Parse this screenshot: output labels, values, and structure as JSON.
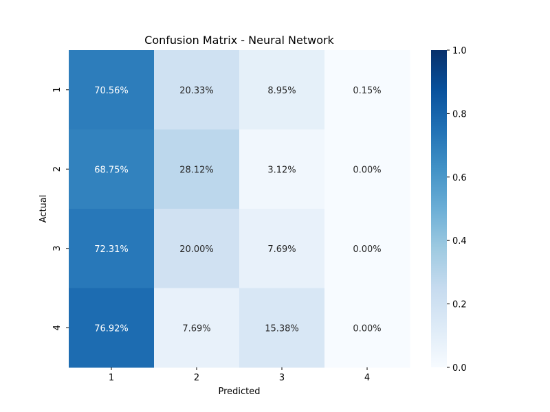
{
  "chart_data": {
    "type": "heatmap",
    "title": "Confusion Matrix - Neural Network",
    "xlabel": "Predicted",
    "ylabel": "Actual",
    "x_categories": [
      "1",
      "2",
      "3",
      "4"
    ],
    "y_categories": [
      "1",
      "2",
      "3",
      "4"
    ],
    "values": [
      [
        0.7056,
        0.2033,
        0.0895,
        0.0015
      ],
      [
        0.6875,
        0.2812,
        0.0312,
        0.0
      ],
      [
        0.7231,
        0.2,
        0.0769,
        0.0
      ],
      [
        0.7692,
        0.0769,
        0.1538,
        0.0
      ]
    ],
    "cell_labels": [
      [
        "70.56%",
        "20.33%",
        "8.95%",
        "0.15%"
      ],
      [
        "68.75%",
        "28.12%",
        "3.12%",
        "0.00%"
      ],
      [
        "72.31%",
        "20.00%",
        "7.69%",
        "0.00%"
      ],
      [
        "76.92%",
        "7.69%",
        "15.38%",
        "0.00%"
      ]
    ],
    "colorbar": {
      "range": [
        0.0,
        1.0
      ],
      "ticks": [
        0.0,
        0.2,
        0.4,
        0.6,
        0.8,
        1.0
      ],
      "tick_labels": [
        "0.0",
        "0.2",
        "0.4",
        "0.6",
        "0.8",
        "1.0"
      ]
    },
    "colormap": "Blues",
    "colormap_stops": [
      "#f7fbff",
      "#deebf7",
      "#c6dbef",
      "#9ecae1",
      "#6baed6",
      "#4292c6",
      "#2171b5",
      "#08519c",
      "#08306b"
    ],
    "text_color_light": "#ffffff",
    "text_color_dark": "#262626",
    "text_light_threshold": 0.5,
    "grid": false,
    "legend": "colorbar-right"
  }
}
